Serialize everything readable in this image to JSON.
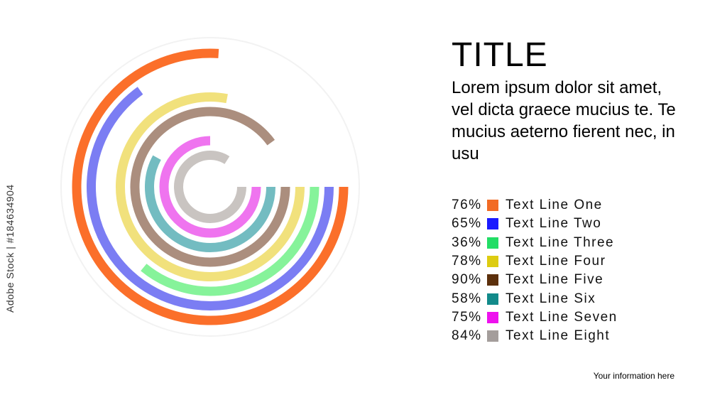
{
  "title": "TITLE",
  "body_text": "Lorem ipsum dolor sit amet, vel dicta graece mucius te. Te mucius aeterno fierent nec, in usu",
  "footer": "Your information here",
  "watermark": "Adobe Stock | #184634904",
  "chart_data": {
    "type": "radial-bar",
    "title": "TITLE",
    "categories": [
      "Text Line One",
      "Text Line Two",
      "Text Line Three",
      "Text Line Four",
      "Text Line Five",
      "Text Line Six",
      "Text Line Seven",
      "Text Line Eight"
    ],
    "values": [
      76,
      65,
      36,
      78,
      90,
      58,
      75,
      84
    ],
    "value_labels": [
      "76%",
      "65%",
      "36%",
      "78%",
      "90%",
      "58%",
      "75%",
      "84%"
    ],
    "legend_colors": [
      "#f26b25",
      "#1a1aff",
      "#22dd66",
      "#ddcc11",
      "#5c300c",
      "#128a8a",
      "#ee11ee",
      "#a49d9b"
    ],
    "ring_colors": [
      "#fb6f2a",
      "#7b7df3",
      "#86f39a",
      "#f1e17c",
      "#ab8e7e",
      "#73bcc1",
      "#ef74ef",
      "#c9c4c1"
    ],
    "unit": "%",
    "legend_position": "right"
  }
}
